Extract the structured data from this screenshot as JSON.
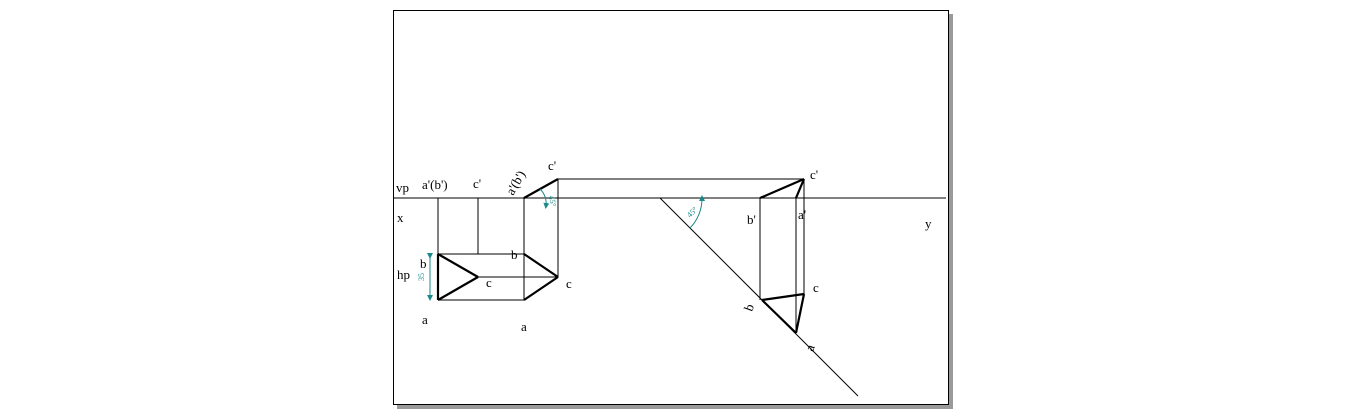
{
  "labels": {
    "vp": "vp",
    "x": "x",
    "y": "y",
    "hp": "hp",
    "front_ab": "a'(b')",
    "front_c": "c'",
    "tilt_ab": "a'(b')",
    "tilt_c": "c'",
    "plan1_a": "a",
    "plan1_b": "b",
    "plan1_c": "c",
    "plan2_a": "a",
    "plan2_b": "b",
    "plan2_c": "c",
    "aux_c": "c'",
    "aux_b": "b'",
    "aux_a": "a'",
    "aux_plan_b": "b",
    "aux_plan_c": "c",
    "aux_plan_a": "a"
  },
  "dims": {
    "height": "35",
    "tilt_angle": "45°",
    "ref_angle": "45°"
  },
  "colors": {
    "line": "#000000",
    "dimension": "#1a8a8a",
    "shadow": "#9a9a9a"
  }
}
